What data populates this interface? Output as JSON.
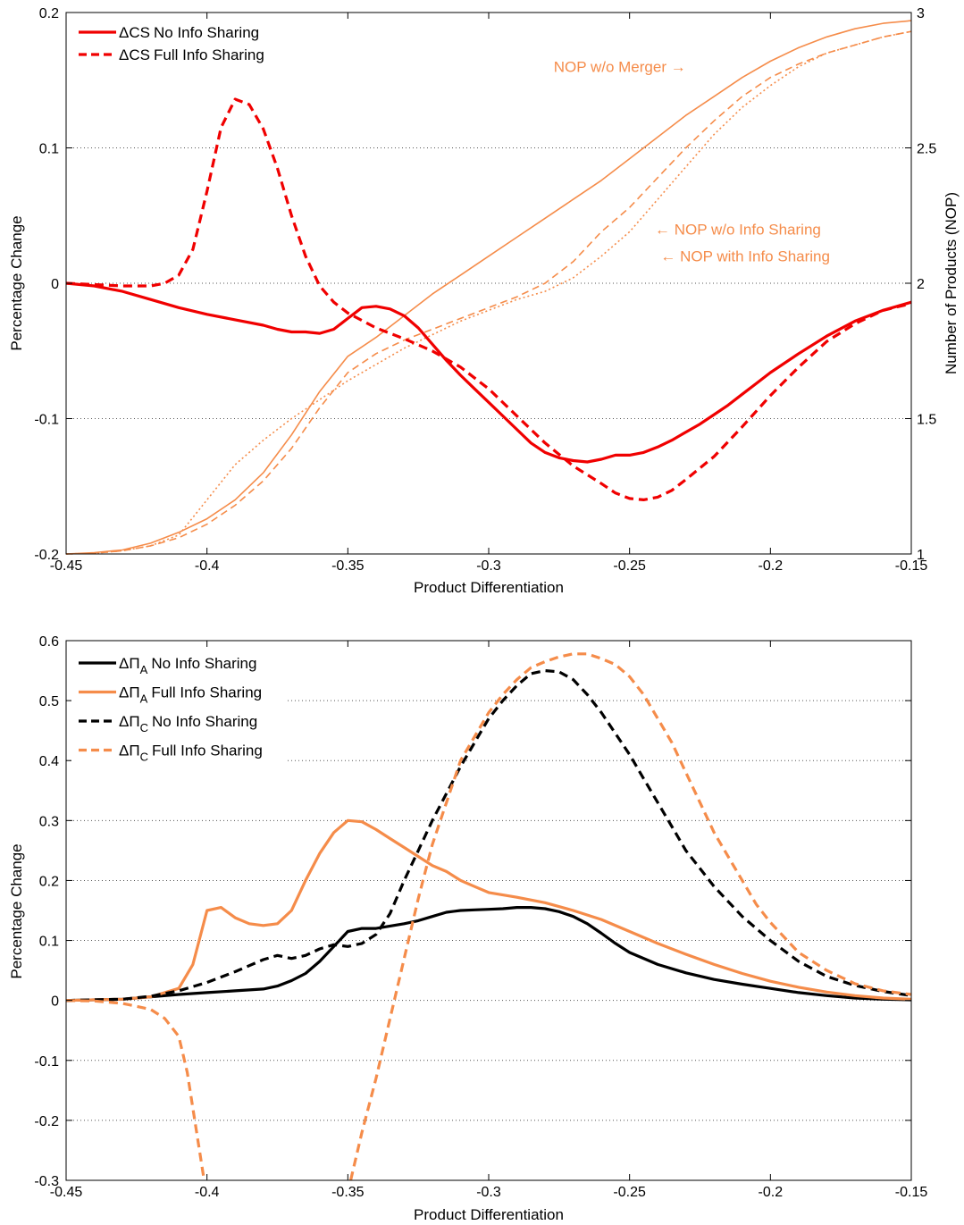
{
  "colors": {
    "red": "#f00000",
    "orange": "#f58c4a",
    "black": "#000000"
  },
  "chart_data": [
    {
      "type": "line",
      "xlabel": "Product Differentiation",
      "ylabel": "Percentage Change",
      "ylabel_right": "Number of Products (NOP)",
      "xlim": [
        -0.45,
        -0.15
      ],
      "ylim": [
        -0.2,
        0.2
      ],
      "ylim_right": [
        1,
        3
      ],
      "grid": "horizontal dotted",
      "legend_position": "top-left",
      "xticks": [
        "-0.45",
        "-0.4",
        "-0.35",
        "-0.3",
        "-0.25",
        "-0.2",
        "-0.15"
      ],
      "yticks": [
        "-0.2",
        "-0.1",
        "0",
        "0.1",
        "0.2"
      ],
      "yticks_right": [
        "1",
        "1.5",
        "2",
        "2.5",
        "3"
      ],
      "legend": [
        {
          "prefix": "ΔCS",
          "sub": "",
          "label": "No Info Sharing",
          "color": "#f00000",
          "dash": "solid"
        },
        {
          "prefix": "ΔCS",
          "sub": "",
          "label": "Full Info Sharing",
          "color": "#f00000",
          "dash": "dashed"
        }
      ],
      "annotations": [
        {
          "text": "NOP w/o Merger →",
          "color": "#f58c4a",
          "x": -0.23,
          "y_right": 2.8,
          "anchor": "end"
        },
        {
          "text": "← NOP w/o Info Sharing",
          "color": "#f58c4a",
          "x": -0.241,
          "y_right": 2.2,
          "anchor": "start"
        },
        {
          "text": "← NOP with Info Sharing",
          "color": "#f58c4a",
          "x": -0.239,
          "y_right": 2.1,
          "anchor": "start"
        }
      ],
      "series": [
        {
          "name": "ΔCS No Info Sharing",
          "axis": "left",
          "color": "#f00000",
          "width": 3.2,
          "dash": "",
          "x": [
            -0.45,
            -0.44,
            -0.43,
            -0.42,
            -0.41,
            -0.4,
            -0.39,
            -0.38,
            -0.375,
            -0.37,
            -0.365,
            -0.36,
            -0.355,
            -0.35,
            -0.345,
            -0.34,
            -0.335,
            -0.33,
            -0.325,
            -0.32,
            -0.315,
            -0.31,
            -0.305,
            -0.3,
            -0.295,
            -0.29,
            -0.285,
            -0.28,
            -0.275,
            -0.27,
            -0.265,
            -0.26,
            -0.255,
            -0.25,
            -0.245,
            -0.24,
            -0.235,
            -0.23,
            -0.225,
            -0.22,
            -0.215,
            -0.21,
            -0.205,
            -0.2,
            -0.19,
            -0.18,
            -0.17,
            -0.16,
            -0.15
          ],
          "y": [
            0,
            -0.002,
            -0.006,
            -0.012,
            -0.018,
            -0.023,
            -0.027,
            -0.031,
            -0.034,
            -0.036,
            -0.036,
            -0.037,
            -0.034,
            -0.026,
            -0.018,
            -0.017,
            -0.019,
            -0.024,
            -0.033,
            -0.045,
            -0.057,
            -0.068,
            -0.078,
            -0.088,
            -0.098,
            -0.108,
            -0.118,
            -0.125,
            -0.129,
            -0.131,
            -0.132,
            -0.13,
            -0.127,
            -0.127,
            -0.125,
            -0.121,
            -0.116,
            -0.11,
            -0.104,
            -0.097,
            -0.09,
            -0.082,
            -0.074,
            -0.066,
            -0.052,
            -0.039,
            -0.028,
            -0.02,
            -0.014
          ]
        },
        {
          "name": "ΔCS Full Info Sharing",
          "axis": "left",
          "color": "#f00000",
          "width": 3.2,
          "dash": "10,6",
          "x": [
            -0.45,
            -0.43,
            -0.42,
            -0.415,
            -0.41,
            -0.405,
            -0.4,
            -0.395,
            -0.39,
            -0.385,
            -0.38,
            -0.375,
            -0.37,
            -0.365,
            -0.36,
            -0.355,
            -0.35,
            -0.34,
            -0.33,
            -0.32,
            -0.31,
            -0.3,
            -0.29,
            -0.28,
            -0.27,
            -0.26,
            -0.255,
            -0.25,
            -0.245,
            -0.24,
            -0.235,
            -0.23,
            -0.22,
            -0.21,
            -0.2,
            -0.19,
            -0.18,
            -0.17,
            -0.16,
            -0.15
          ],
          "y": [
            0,
            -0.002,
            -0.002,
            0,
            0.006,
            0.025,
            0.068,
            0.115,
            0.136,
            0.132,
            0.114,
            0.085,
            0.05,
            0.02,
            -0.002,
            -0.014,
            -0.022,
            -0.033,
            -0.041,
            -0.05,
            -0.062,
            -0.078,
            -0.098,
            -0.118,
            -0.135,
            -0.148,
            -0.155,
            -0.159,
            -0.16,
            -0.158,
            -0.153,
            -0.145,
            -0.128,
            -0.106,
            -0.083,
            -0.062,
            -0.043,
            -0.03,
            -0.02,
            -0.015
          ]
        },
        {
          "name": "NOP w/o Merger",
          "axis": "right",
          "color": "#f58c4a",
          "width": 1.6,
          "dash": "",
          "x": [
            -0.45,
            -0.44,
            -0.43,
            -0.42,
            -0.41,
            -0.4,
            -0.39,
            -0.38,
            -0.37,
            -0.36,
            -0.35,
            -0.34,
            -0.33,
            -0.32,
            -0.31,
            -0.3,
            -0.29,
            -0.28,
            -0.27,
            -0.26,
            -0.25,
            -0.24,
            -0.23,
            -0.22,
            -0.21,
            -0.2,
            -0.19,
            -0.18,
            -0.17,
            -0.16,
            -0.15
          ],
          "y": [
            1,
            1.005,
            1.015,
            1.04,
            1.08,
            1.13,
            1.2,
            1.3,
            1.44,
            1.6,
            1.73,
            1.8,
            1.88,
            1.96,
            2.03,
            2.1,
            2.17,
            2.24,
            2.31,
            2.38,
            2.46,
            2.54,
            2.62,
            2.69,
            2.76,
            2.82,
            2.87,
            2.91,
            2.94,
            2.96,
            2.97
          ]
        },
        {
          "name": "NOP w/o Info Sharing",
          "axis": "right",
          "color": "#f58c4a",
          "width": 1.6,
          "dash": "8,5",
          "x": [
            -0.45,
            -0.44,
            -0.43,
            -0.42,
            -0.41,
            -0.4,
            -0.39,
            -0.38,
            -0.37,
            -0.36,
            -0.35,
            -0.34,
            -0.33,
            -0.32,
            -0.31,
            -0.3,
            -0.29,
            -0.28,
            -0.27,
            -0.26,
            -0.25,
            -0.24,
            -0.23,
            -0.22,
            -0.21,
            -0.2,
            -0.19,
            -0.18,
            -0.17,
            -0.16,
            -0.15
          ],
          "y": [
            1,
            1.003,
            1.012,
            1.03,
            1.06,
            1.11,
            1.18,
            1.27,
            1.39,
            1.54,
            1.67,
            1.74,
            1.79,
            1.83,
            1.87,
            1.91,
            1.95,
            2.0,
            2.08,
            2.19,
            2.28,
            2.39,
            2.5,
            2.6,
            2.69,
            2.76,
            2.81,
            2.85,
            2.88,
            2.91,
            2.93
          ]
        },
        {
          "name": "NOP with Info Sharing",
          "axis": "right",
          "color": "#f58c4a",
          "width": 1.6,
          "dash": "2,3",
          "x": [
            -0.45,
            -0.44,
            -0.43,
            -0.42,
            -0.41,
            -0.4,
            -0.39,
            -0.38,
            -0.37,
            -0.36,
            -0.35,
            -0.34,
            -0.33,
            -0.32,
            -0.31,
            -0.3,
            -0.29,
            -0.28,
            -0.27,
            -0.26,
            -0.25,
            -0.24,
            -0.23,
            -0.22,
            -0.21,
            -0.2,
            -0.19,
            -0.18,
            -0.17,
            -0.16,
            -0.15
          ],
          "y": [
            1,
            1.003,
            1.012,
            1.03,
            1.07,
            1.2,
            1.33,
            1.42,
            1.5,
            1.57,
            1.64,
            1.7,
            1.76,
            1.81,
            1.86,
            1.9,
            1.94,
            1.97,
            2.02,
            2.1,
            2.19,
            2.31,
            2.43,
            2.55,
            2.65,
            2.73,
            2.8,
            2.85,
            2.88,
            2.91,
            2.93
          ]
        }
      ]
    },
    {
      "type": "line",
      "xlabel": "Product Differentiation",
      "ylabel": "Percentage Change",
      "xlim": [
        -0.45,
        -0.15
      ],
      "ylim": [
        -0.3,
        0.6
      ],
      "grid": "horizontal dotted",
      "legend_position": "top-left",
      "xticks": [
        "-0.45",
        "-0.4",
        "-0.35",
        "-0.3",
        "-0.25",
        "-0.2",
        "-0.15"
      ],
      "yticks": [
        "-0.3",
        "-0.2",
        "-0.1",
        "0",
        "0.1",
        "0.2",
        "0.3",
        "0.4",
        "0.5",
        "0.6"
      ],
      "legend": [
        {
          "prefix": "ΔΠ",
          "sub": "A",
          "label": "No Info Sharing",
          "color": "#000000",
          "dash": "solid"
        },
        {
          "prefix": "ΔΠ",
          "sub": "A",
          "label": "Full Info Sharing",
          "color": "#f58c4a",
          "dash": "solid"
        },
        {
          "prefix": "ΔΠ",
          "sub": "C",
          "label": "No Info Sharing",
          "color": "#000000",
          "dash": "dashed"
        },
        {
          "prefix": "ΔΠ",
          "sub": "C",
          "label": "Full Info Sharing",
          "color": "#f58c4a",
          "dash": "dashed"
        }
      ],
      "series": [
        {
          "name": "ΔΠA No Info Sharing",
          "color": "#000000",
          "width": 3.2,
          "dash": "",
          "x": [
            -0.45,
            -0.43,
            -0.42,
            -0.41,
            -0.4,
            -0.39,
            -0.38,
            -0.375,
            -0.37,
            -0.365,
            -0.36,
            -0.355,
            -0.35,
            -0.345,
            -0.34,
            -0.335,
            -0.33,
            -0.325,
            -0.32,
            -0.315,
            -0.31,
            -0.305,
            -0.3,
            -0.295,
            -0.29,
            -0.285,
            -0.28,
            -0.275,
            -0.27,
            -0.265,
            -0.26,
            -0.255,
            -0.25,
            -0.24,
            -0.23,
            -0.22,
            -0.21,
            -0.2,
            -0.19,
            -0.18,
            -0.17,
            -0.16,
            -0.15
          ],
          "y": [
            0,
            0.002,
            0.006,
            0.01,
            0.013,
            0.016,
            0.019,
            0.024,
            0.033,
            0.045,
            0.065,
            0.09,
            0.115,
            0.12,
            0.12,
            0.124,
            0.128,
            0.133,
            0.14,
            0.147,
            0.15,
            0.151,
            0.152,
            0.153,
            0.155,
            0.155,
            0.153,
            0.148,
            0.14,
            0.128,
            0.112,
            0.095,
            0.08,
            0.06,
            0.046,
            0.035,
            0.027,
            0.02,
            0.013,
            0.008,
            0.004,
            0.002,
            0.001
          ]
        },
        {
          "name": "ΔΠA Full Info Sharing",
          "color": "#f58c4a",
          "width": 3.2,
          "dash": "",
          "x": [
            -0.45,
            -0.43,
            -0.42,
            -0.41,
            -0.405,
            -0.4,
            -0.395,
            -0.39,
            -0.385,
            -0.38,
            -0.375,
            -0.37,
            -0.365,
            -0.36,
            -0.355,
            -0.35,
            -0.345,
            -0.34,
            -0.335,
            -0.33,
            -0.325,
            -0.32,
            -0.315,
            -0.31,
            -0.305,
            -0.3,
            -0.29,
            -0.28,
            -0.27,
            -0.26,
            -0.25,
            -0.24,
            -0.23,
            -0.22,
            -0.21,
            -0.2,
            -0.19,
            -0.18,
            -0.17,
            -0.16,
            -0.15
          ],
          "y": [
            0,
            0.002,
            0.006,
            0.02,
            0.06,
            0.15,
            0.155,
            0.138,
            0.128,
            0.125,
            0.128,
            0.15,
            0.2,
            0.245,
            0.28,
            0.3,
            0.298,
            0.285,
            0.27,
            0.255,
            0.24,
            0.225,
            0.215,
            0.2,
            0.19,
            0.18,
            0.172,
            0.163,
            0.15,
            0.135,
            0.115,
            0.095,
            0.077,
            0.06,
            0.045,
            0.032,
            0.022,
            0.014,
            0.008,
            0.004,
            0.002
          ]
        },
        {
          "name": "ΔΠC No Info Sharing",
          "color": "#000000",
          "width": 3.2,
          "dash": "10,6",
          "x": [
            -0.45,
            -0.43,
            -0.42,
            -0.41,
            -0.4,
            -0.39,
            -0.38,
            -0.375,
            -0.37,
            -0.365,
            -0.36,
            -0.355,
            -0.35,
            -0.345,
            -0.34,
            -0.335,
            -0.33,
            -0.325,
            -0.32,
            -0.315,
            -0.31,
            -0.305,
            -0.3,
            -0.295,
            -0.29,
            -0.285,
            -0.28,
            -0.275,
            -0.27,
            -0.265,
            -0.26,
            -0.255,
            -0.25,
            -0.245,
            -0.24,
            -0.235,
            -0.23,
            -0.225,
            -0.22,
            -0.21,
            -0.2,
            -0.19,
            -0.18,
            -0.17,
            -0.16,
            -0.15
          ],
          "y": [
            0,
            0.002,
            0.007,
            0.016,
            0.03,
            0.048,
            0.068,
            0.075,
            0.07,
            0.075,
            0.086,
            0.093,
            0.09,
            0.095,
            0.11,
            0.145,
            0.2,
            0.25,
            0.3,
            0.345,
            0.39,
            0.43,
            0.47,
            0.5,
            0.525,
            0.545,
            0.55,
            0.548,
            0.535,
            0.51,
            0.48,
            0.445,
            0.41,
            0.37,
            0.33,
            0.29,
            0.25,
            0.22,
            0.19,
            0.14,
            0.1,
            0.065,
            0.04,
            0.025,
            0.015,
            0.008
          ]
        },
        {
          "name": "ΔΠC Full Info Sharing",
          "color": "#f58c4a",
          "width": 3.2,
          "dash": "10,6",
          "x": [
            -0.45,
            -0.44,
            -0.43,
            -0.42,
            -0.415,
            -0.41,
            -0.407,
            -0.405,
            -0.403,
            -0.401
          ],
          "y": [
            0,
            -0.001,
            -0.005,
            -0.015,
            -0.03,
            -0.06,
            -0.12,
            -0.18,
            -0.24,
            -0.3
          ]
        },
        {
          "name": "ΔΠC Full Info Sharing (right branch)",
          "color": "#f58c4a",
          "width": 3.2,
          "dash": "10,6",
          "x": [
            -0.349,
            -0.345,
            -0.34,
            -0.335,
            -0.33,
            -0.325,
            -0.32,
            -0.315,
            -0.31,
            -0.305,
            -0.3,
            -0.295,
            -0.29,
            -0.285,
            -0.28,
            -0.275,
            -0.27,
            -0.265,
            -0.26,
            -0.255,
            -0.25,
            -0.245,
            -0.24,
            -0.235,
            -0.23,
            -0.225,
            -0.22,
            -0.215,
            -0.21,
            -0.205,
            -0.2,
            -0.19,
            -0.18,
            -0.17,
            -0.16,
            -0.15
          ],
          "y": [
            -0.3,
            -0.22,
            -0.13,
            -0.03,
            0.07,
            0.17,
            0.26,
            0.33,
            0.4,
            0.44,
            0.48,
            0.51,
            0.535,
            0.555,
            0.565,
            0.573,
            0.578,
            0.578,
            0.57,
            0.56,
            0.54,
            0.51,
            0.47,
            0.43,
            0.38,
            0.33,
            0.28,
            0.24,
            0.2,
            0.16,
            0.13,
            0.08,
            0.05,
            0.028,
            0.016,
            0.01
          ]
        }
      ]
    }
  ]
}
